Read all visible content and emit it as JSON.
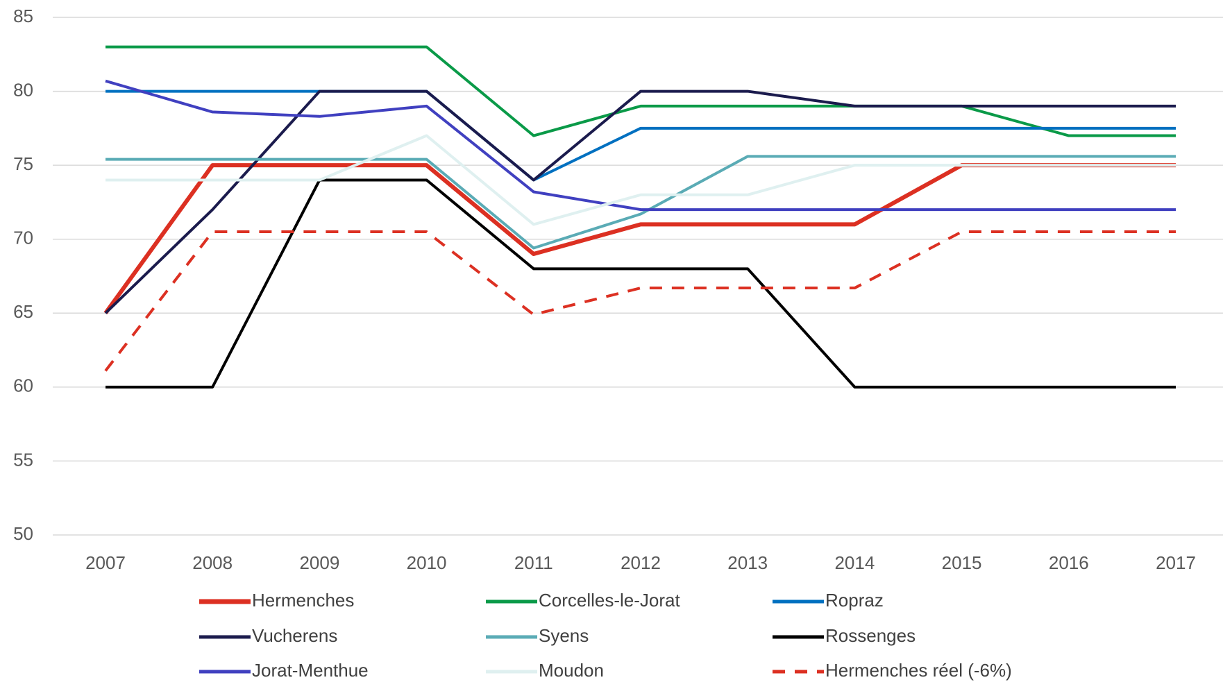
{
  "chart_data": {
    "type": "line",
    "categories": [
      "2007",
      "2008",
      "2009",
      "2010",
      "2011",
      "2012",
      "2013",
      "2014",
      "2015",
      "2016",
      "2017"
    ],
    "ylim": [
      50,
      85
    ],
    "yticks": [
      50,
      55,
      60,
      65,
      70,
      75,
      80,
      85
    ],
    "grid": true,
    "legend": "bottom",
    "series": [
      {
        "name": "Hermenches",
        "color": "#dc3022",
        "width": 6,
        "values": [
          65,
          75,
          75,
          75,
          69,
          71,
          71,
          71,
          75,
          75,
          75
        ]
      },
      {
        "name": "Corcelles-le-Jorat",
        "color": "#0a9a48",
        "width": 4,
        "values": [
          83,
          83,
          83,
          83,
          77,
          79,
          79,
          79,
          79,
          77,
          77
        ]
      },
      {
        "name": "Ropraz",
        "color": "#0070c0",
        "width": 4,
        "values": [
          80,
          80,
          80,
          80,
          74,
          77.5,
          77.5,
          77.5,
          77.5,
          77.5,
          77.5
        ]
      },
      {
        "name": "Vucherens",
        "color": "#1b1b4d",
        "width": 4,
        "values": [
          65,
          72,
          80,
          80,
          74,
          80,
          80,
          79,
          79,
          79,
          79
        ]
      },
      {
        "name": "Syens",
        "color": "#5aabb5",
        "width": 4,
        "values": [
          75.4,
          75.4,
          75.4,
          75.4,
          69.4,
          71.7,
          75.6,
          75.6,
          75.6,
          75.6,
          75.6
        ]
      },
      {
        "name": "Rossenges",
        "color": "#000000",
        "width": 4,
        "values": [
          60,
          60,
          74,
          74,
          68,
          68,
          68,
          60,
          60,
          60,
          60
        ]
      },
      {
        "name": "Jorat-Menthue",
        "color": "#4040c0",
        "width": 4,
        "values": [
          80.7,
          78.6,
          78.3,
          79,
          73.2,
          72,
          72,
          72,
          72,
          72,
          72
        ]
      },
      {
        "name": "Moudon",
        "color": "#dff0f0",
        "width": 4,
        "values": [
          74,
          74,
          74,
          77,
          71,
          73,
          73,
          75,
          75,
          75,
          75
        ]
      },
      {
        "name": "Hermenches réel (-6%)",
        "color": "#dc3022",
        "width": 4,
        "dashed": true,
        "values": [
          61.1,
          70.5,
          70.5,
          70.5,
          64.9,
          66.7,
          66.7,
          66.7,
          70.5,
          70.5,
          70.5
        ]
      }
    ]
  }
}
